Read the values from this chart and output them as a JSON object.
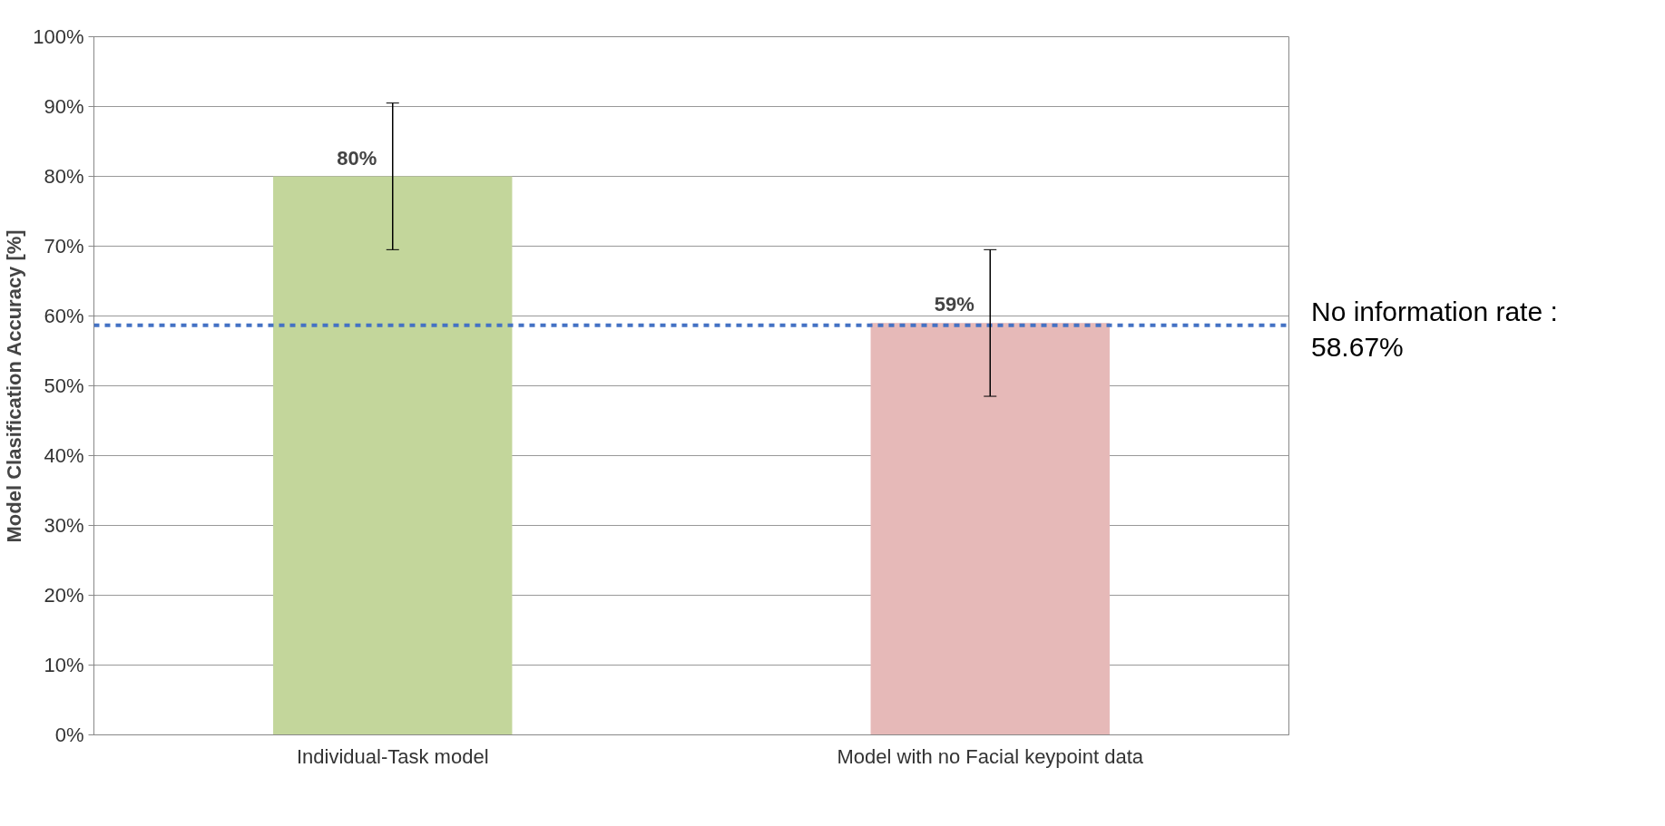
{
  "chart_data": {
    "type": "bar",
    "ylabel": "Model Clasification Accuracy [%]",
    "categories": [
      "Individual-Task model",
      "Model with no Facial keypoint data"
    ],
    "values": [
      80,
      59
    ],
    "colors": [
      "#c3d69b",
      "#e6b9b8"
    ],
    "errors": [
      [
        69.5,
        90.5
      ],
      [
        48.5,
        69.5
      ]
    ],
    "value_labels": [
      "80%",
      "59%"
    ],
    "ylim": [
      0,
      100
    ],
    "yticks": [
      {
        "value": 0,
        "label": "0%"
      },
      {
        "value": 10,
        "label": "10%"
      },
      {
        "value": 20,
        "label": "20%"
      },
      {
        "value": 30,
        "label": "30%"
      },
      {
        "value": 40,
        "label": "40%"
      },
      {
        "value": 50,
        "label": "50%"
      },
      {
        "value": 60,
        "label": "60%"
      },
      {
        "value": 70,
        "label": "70%"
      },
      {
        "value": 80,
        "label": "80%"
      },
      {
        "value": 90,
        "label": "90%"
      },
      {
        "value": 100,
        "label": "100%"
      }
    ],
    "grid": "y",
    "ref_lines": [
      {
        "axis": "y",
        "value": 58.67,
        "label": "No information rate : 58.67%",
        "color": "#4472c4",
        "line_style": "dashed"
      }
    ]
  }
}
